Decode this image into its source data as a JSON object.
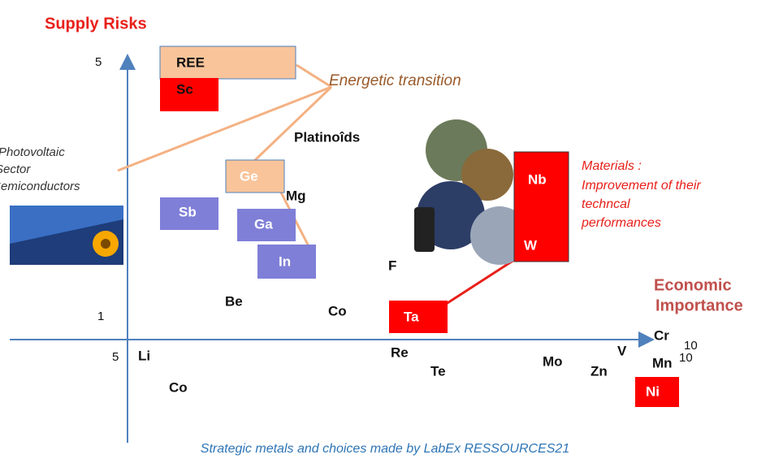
{
  "title": "Supply Risks",
  "axis_labels": {
    "y_top": "5",
    "y_low": "1",
    "x_left": "5",
    "x_right_1": "10",
    "x_right_2": "10"
  },
  "x_title": [
    "Economic",
    "Importance"
  ],
  "annotations": {
    "energetic_transition": "Energetic transition",
    "photovoltaic": [
      "Photovoltaic",
      "Sector",
      "Semiconductors"
    ],
    "materials": [
      "Materials :",
      "Improvement of their",
      "techncal",
      "performances"
    ]
  },
  "boxes": [
    "REE",
    "Sc",
    "Ge",
    "Sb",
    "Ga",
    "In",
    "Nb",
    "W",
    "Ta",
    "Ni"
  ],
  "elements": [
    "Platinoîds",
    "Mg",
    "Be",
    "Co",
    "F",
    "Li",
    "Co",
    "Re",
    "Te",
    "Mo",
    "Zn",
    "V",
    "Cr",
    "Mn"
  ],
  "caption": "Strategic metals and choices made by LabEx RESSOURCES21"
}
